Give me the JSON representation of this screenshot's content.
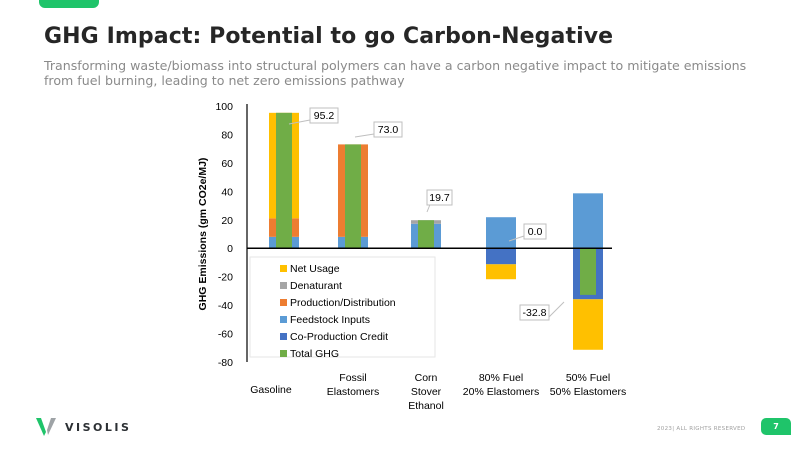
{
  "slide": {
    "title": "GHG Impact: Potential to go Carbon-Negative",
    "subtitle": "Transforming waste/biomass into structural polymers can have a carbon negative impact to mitigate emissions from fuel burning, leading to net zero emissions pathway",
    "brand": "VISOLIS",
    "footer": "2023| ALL RIGHTS RESERVED",
    "page_number": "7",
    "accent_color": "#1fc46a"
  },
  "chart_data": {
    "type": "bar",
    "subtype": "stacked-with-overlay",
    "title": "",
    "xlabel": "",
    "ylabel": "GHG Emissions (gm CO2e/MJ)",
    "ylim": [
      -80,
      100
    ],
    "yticks": [
      100,
      80,
      60,
      40,
      20,
      0,
      -20,
      -40,
      -60,
      -80
    ],
    "grid": false,
    "legend_position": "bottom-left-inside",
    "categories": [
      [
        "Gasoline"
      ],
      [
        "Fossil",
        "Elastomers"
      ],
      [
        "Corn",
        "Stover",
        "Ethanol"
      ],
      [
        "80% Fuel",
        "20% Elastomers"
      ],
      [
        "50% Fuel",
        "50% Elastomers"
      ]
    ],
    "series": [
      {
        "name": "Net Usage",
        "color": "#ffc000",
        "values": [
          74.2,
          0,
          0,
          -10.5,
          -35.5
        ]
      },
      {
        "name": "Denaturant",
        "color": "#a5a5a5",
        "values": [
          0,
          0,
          2.5,
          0,
          0
        ]
      },
      {
        "name": "Production/Distribution",
        "color": "#ed7d31",
        "values": [
          13,
          65,
          0,
          0,
          0
        ]
      },
      {
        "name": "Feedstock Inputs",
        "color": "#5b9bd5",
        "values": [
          8,
          8,
          17.2,
          21.8,
          38.6
        ]
      },
      {
        "name": "Co-Production Credit",
        "color": "#4472c4",
        "values": [
          0,
          0,
          0,
          -11.3,
          -35.9
        ]
      },
      {
        "name": "Total GHG",
        "color": "#70ad47",
        "values": [
          95.2,
          73.0,
          19.7,
          0.0,
          -32.8
        ]
      }
    ],
    "data_labels": [
      "95.2",
      "73.0",
      "19.7",
      "0.0",
      "-32.8"
    ]
  }
}
